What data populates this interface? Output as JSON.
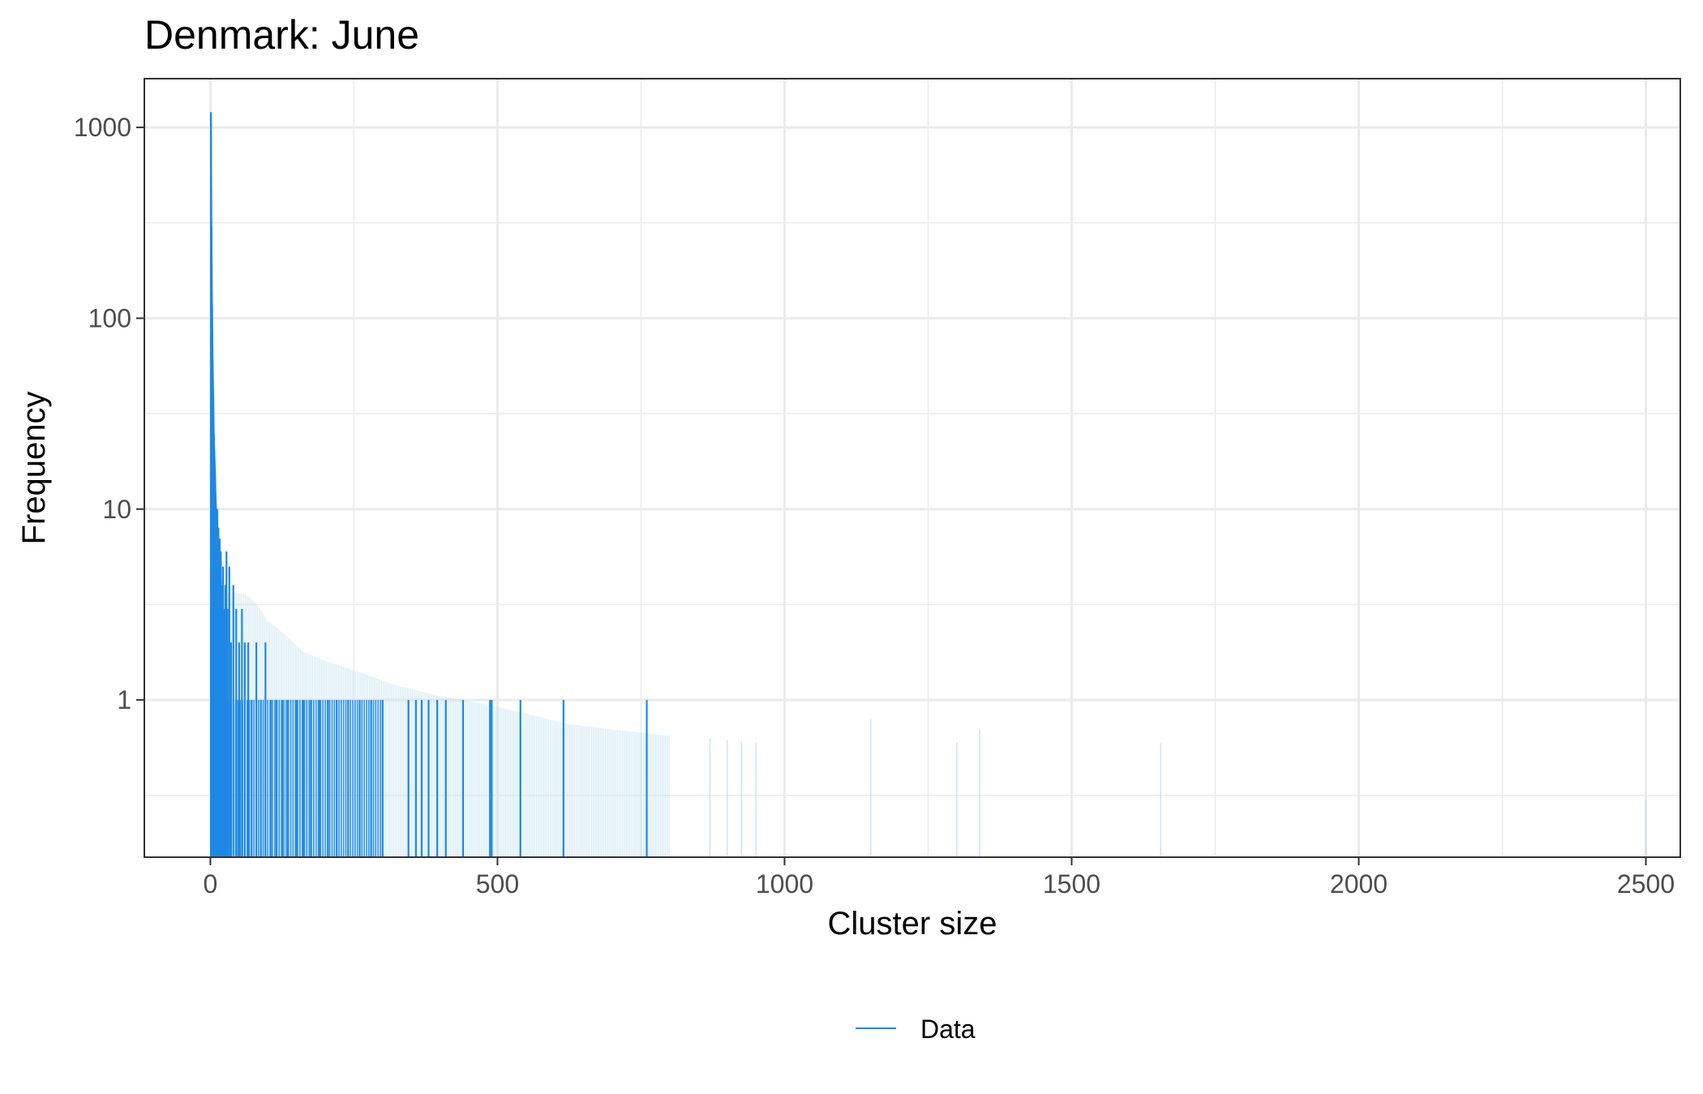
{
  "chart_data": {
    "type": "line",
    "title": "Denmark: June",
    "xlabel": "Cluster size",
    "ylabel": "Frequency",
    "xlim": [
      -115,
      2560
    ],
    "ylim": [
      0.15,
      1800
    ],
    "y_scale": "log10",
    "grid": true,
    "legend_position": "bottom",
    "x_ticks": [
      0,
      500,
      1000,
      1500,
      2000,
      2500
    ],
    "x_tick_labels": [
      "0",
      "500",
      "1000",
      "1500",
      "2000",
      "2500"
    ],
    "y_ticks": [
      1,
      10,
      100,
      1000
    ],
    "y_tick_labels": [
      "1",
      "10",
      "100",
      "1000"
    ],
    "colors": {
      "data": "#1e88e5",
      "confidence_band": "#b7dcec",
      "grid": "#ebebeb",
      "panel_border": "#333333"
    },
    "series": [
      {
        "name": "Data",
        "x": [
          1,
          2,
          3,
          4,
          5,
          6,
          7,
          8,
          9,
          10,
          11,
          12,
          13,
          14,
          15,
          16,
          17,
          18,
          19,
          20,
          22,
          24,
          26,
          28,
          30,
          33,
          36,
          40,
          45,
          50,
          55,
          60,
          66,
          72,
          80,
          88,
          96,
          105,
          115,
          125,
          135,
          150,
          162,
          175,
          190,
          205,
          220,
          240,
          260,
          280,
          300,
          345,
          358,
          368,
          380,
          395,
          410,
          440,
          487,
          490,
          540,
          615,
          760
        ],
        "y": [
          1200,
          300,
          120,
          60,
          40,
          25,
          20,
          16,
          12,
          10,
          9,
          10,
          6,
          8,
          5,
          7,
          4,
          6,
          3,
          4,
          5,
          3,
          4,
          6,
          3,
          5,
          2,
          4,
          3,
          2,
          3,
          2,
          2,
          1,
          2,
          1,
          2,
          1,
          1,
          1,
          1,
          1,
          1,
          1,
          1,
          1,
          1,
          1,
          1,
          1,
          1,
          1,
          1,
          1,
          1,
          1,
          1,
          1,
          1,
          1,
          1,
          1,
          1
        ]
      }
    ],
    "band_upper_points": [
      [
        30,
        3.6
      ],
      [
        60,
        3.6
      ],
      [
        80,
        3.2
      ],
      [
        100,
        2.6
      ],
      [
        130,
        2.2
      ],
      [
        160,
        1.8
      ],
      [
        200,
        1.6
      ],
      [
        260,
        1.4
      ],
      [
        320,
        1.2
      ],
      [
        400,
        1.05
      ],
      [
        480,
        0.95
      ],
      [
        550,
        0.85
      ],
      [
        620,
        0.75
      ],
      [
        700,
        0.7
      ],
      [
        800,
        0.65
      ],
      [
        950,
        0.6
      ],
      [
        1150,
        0.8
      ],
      [
        1300,
        0.6
      ],
      [
        1340,
        0.7
      ],
      [
        1650,
        0.6
      ],
      [
        2500,
        0.3
      ]
    ],
    "band_columns_x": [
      870,
      900,
      925,
      950,
      1150,
      1300,
      1340,
      1655,
      2500
    ]
  },
  "legend": {
    "items": [
      {
        "label": "Data",
        "color": "#1e88e5"
      }
    ]
  }
}
